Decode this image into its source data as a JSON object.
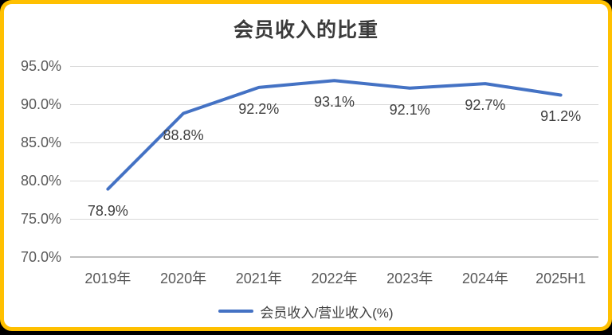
{
  "chart_data": {
    "type": "line",
    "title": "会员收入的比重",
    "categories": [
      "2019年",
      "2020年",
      "2021年",
      "2022年",
      "2023年",
      "2024年",
      "2025H1"
    ],
    "series": [
      {
        "name": "会员收入/营业收入(%)",
        "values": [
          78.9,
          88.8,
          92.2,
          93.1,
          92.1,
          92.7,
          91.2
        ]
      }
    ],
    "data_labels": [
      "78.9%",
      "88.8%",
      "92.2%",
      "93.1%",
      "92.1%",
      "92.7%",
      "91.2%"
    ],
    "data_label_position": "below",
    "y_ticks": [
      "95.0%",
      "90.0%",
      "85.0%",
      "80.0%",
      "75.0%",
      "70.0%"
    ],
    "ylim": [
      70,
      95
    ],
    "grid": "horizontal",
    "legend_position": "bottom",
    "colors": {
      "line": "#4472C4",
      "gridline": "#d9d9d9",
      "axis_line": "#bfbfbf",
      "axis_text": "#595959",
      "data_label_text": "#3f3f3f",
      "title_text": "#3b3b3b"
    }
  },
  "frame": {
    "border_color": "#FFC000",
    "background": "#ffffff",
    "outside_color": "#000000"
  }
}
